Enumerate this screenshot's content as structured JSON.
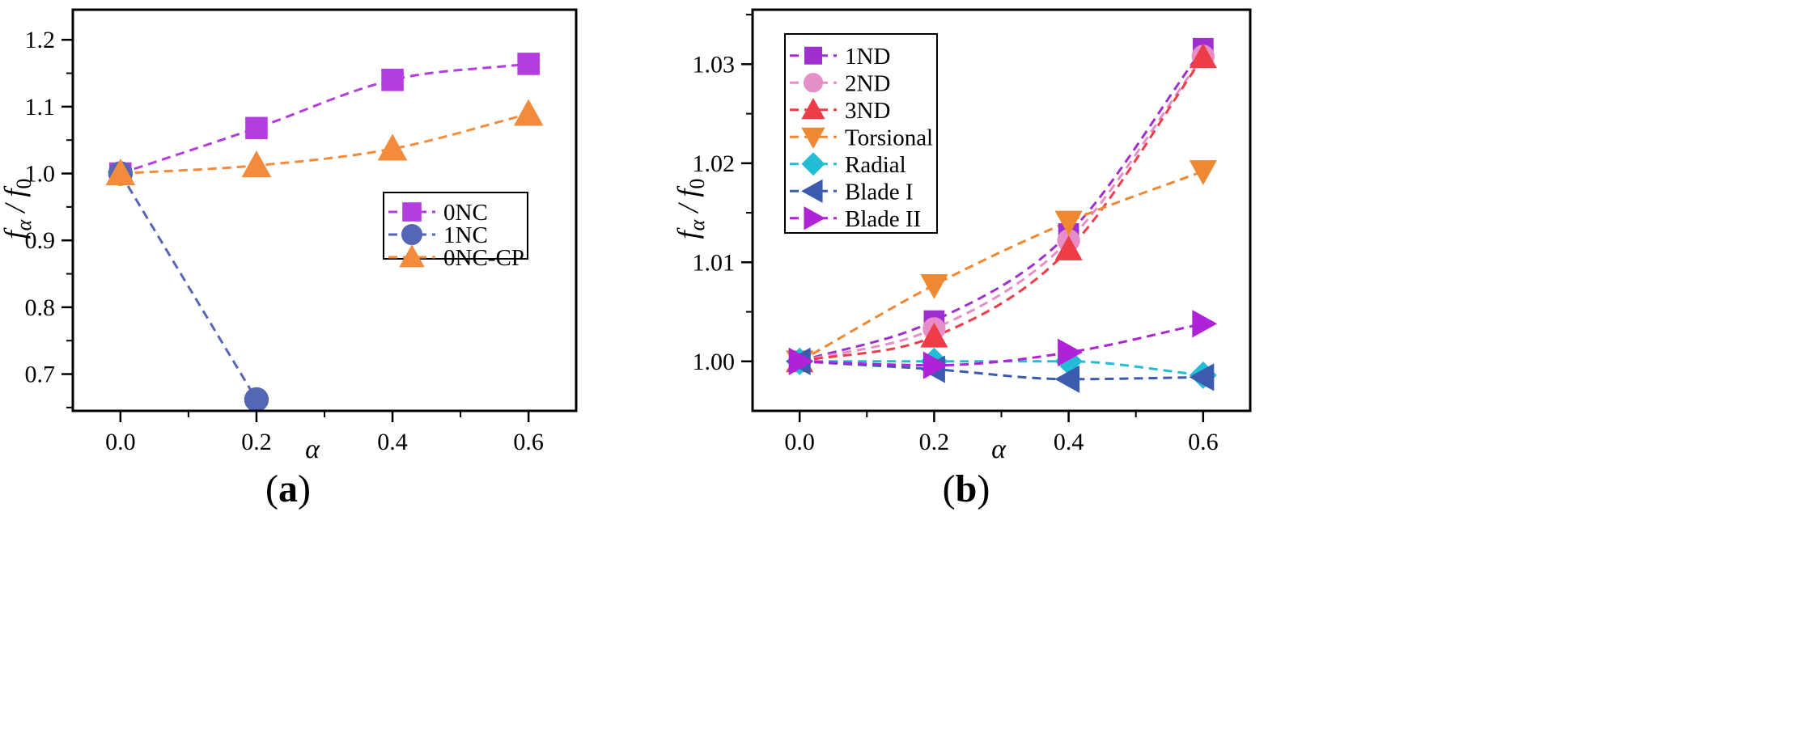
{
  "chart_data": [
    {
      "type": "line",
      "panel_label": "(a)",
      "panel_letter": "a",
      "xlabel": "α",
      "ylabel_main": "f",
      "ylabel_sub_num": "α",
      "ylabel_sep": " / ",
      "ylabel_den": "f",
      "ylabel_sub_den": "0",
      "xlim": [
        -0.07,
        0.67
      ],
      "ylim": [
        0.645,
        1.245
      ],
      "xticks": [
        0.0,
        0.2,
        0.4,
        0.6
      ],
      "xtick_labels": [
        "0.0",
        "0.2",
        "0.4",
        "0.6"
      ],
      "yticks": [
        0.7,
        0.8,
        0.9,
        1.0,
        1.1,
        1.2
      ],
      "ytick_labels": [
        "0.7",
        "0.8",
        "0.9",
        "1.0",
        "1.1",
        "1.2"
      ],
      "legend_position": "center-right",
      "series": [
        {
          "name": "0NC",
          "color": "#b43de0",
          "marker": "square",
          "x": [
            0.0,
            0.2,
            0.4,
            0.6
          ],
          "y": [
            1.0,
            1.068,
            1.14,
            1.164
          ]
        },
        {
          "name": "1NC",
          "color": "#5566b5",
          "marker": "circle",
          "x": [
            0.0,
            0.2
          ],
          "y": [
            1.0,
            0.662
          ]
        },
        {
          "name": "0NC-CP",
          "color": "#f28c3c",
          "marker": "triangle-up",
          "x": [
            0.0,
            0.2,
            0.4,
            0.6
          ],
          "y": [
            1.0,
            1.012,
            1.037,
            1.089
          ]
        }
      ]
    },
    {
      "type": "line",
      "panel_label": "(b)",
      "panel_letter": "b",
      "xlabel": "α",
      "ylabel_main": "f",
      "ylabel_sub_num": "α",
      "ylabel_sep": " / ",
      "ylabel_den": "f",
      "ylabel_sub_den": "0",
      "xlim": [
        -0.07,
        0.67
      ],
      "ylim": [
        0.995,
        1.0355
      ],
      "xticks": [
        0.0,
        0.2,
        0.4,
        0.6
      ],
      "xtick_labels": [
        "0.0",
        "0.2",
        "0.4",
        "0.6"
      ],
      "yticks": [
        1.0,
        1.01,
        1.02,
        1.03
      ],
      "ytick_labels": [
        "1.00",
        "1.01",
        "1.02",
        "1.03"
      ],
      "legend_position": "top-left",
      "series": [
        {
          "name": "1ND",
          "color": "#a02fd0",
          "marker": "square",
          "x": [
            0.0,
            0.2,
            0.4,
            0.6
          ],
          "y": [
            1.0,
            1.0041,
            1.0129,
            1.0316
          ]
        },
        {
          "name": "2ND",
          "color": "#e58ec8",
          "marker": "circle",
          "x": [
            0.0,
            0.2,
            0.4,
            0.6
          ],
          "y": [
            1.0,
            1.0033,
            1.0122,
            1.0308
          ]
        },
        {
          "name": "3ND",
          "color": "#ee3d48",
          "marker": "triangle-up",
          "x": [
            0.0,
            0.2,
            0.4,
            0.6
          ],
          "y": [
            1.0,
            1.0025,
            1.0113,
            1.0307
          ]
        },
        {
          "name": "Torsional",
          "color": "#ee8832",
          "marker": "triangle-down",
          "x": [
            0.0,
            0.2,
            0.4,
            0.6
          ],
          "y": [
            1.0,
            1.0077,
            1.0141,
            1.0192
          ]
        },
        {
          "name": "Radial",
          "color": "#23bcd6",
          "marker": "diamond",
          "x": [
            0.0,
            0.2,
            0.4,
            0.6
          ],
          "y": [
            1.0,
            1.0,
            1.0,
            0.9986
          ]
        },
        {
          "name": "Blade I",
          "color": "#3b5bb0",
          "marker": "triangle-left",
          "x": [
            0.0,
            0.2,
            0.4,
            0.6
          ],
          "y": [
            1.0,
            0.9992,
            0.9982,
            0.9984
          ]
        },
        {
          "name": "Blade II",
          "color": "#b022d8",
          "marker": "triangle-right",
          "x": [
            0.0,
            0.2,
            0.4,
            0.6
          ],
          "y": [
            1.0,
            0.9996,
            1.0009,
            1.0038
          ]
        }
      ]
    }
  ]
}
